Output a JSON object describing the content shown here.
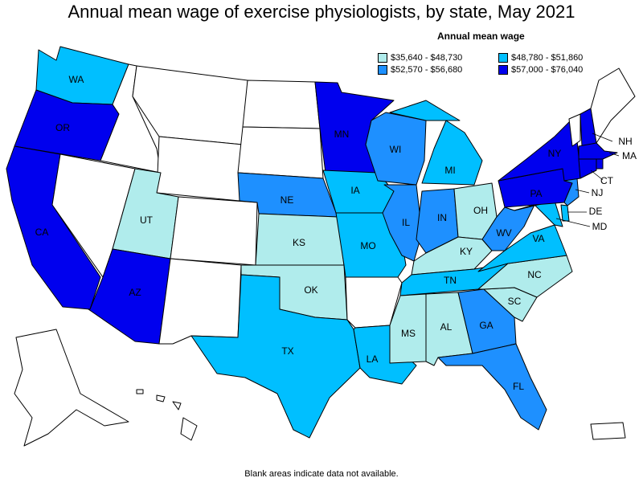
{
  "title": "Annual mean wage of exercise physiologists, by state, May 2021",
  "legend": {
    "title": "Annual mean wage",
    "items": [
      {
        "label": "$35,640 - $48,730",
        "color": "#b0ecec"
      },
      {
        "label": "$48,780 - $51,860",
        "color": "#00bfff"
      },
      {
        "label": "$52,570 - $56,680",
        "color": "#1e90ff"
      },
      {
        "label": "$57,000 - $76,040",
        "color": "#0000ee"
      }
    ]
  },
  "footnote": "Blank areas indicate data not available.",
  "colors": {
    "no_data": "#ffffff",
    "border": "#000000"
  },
  "states": {
    "WA": {
      "label": "WA",
      "bin": 1
    },
    "OR": {
      "label": "OR",
      "bin": 3
    },
    "CA": {
      "label": "CA",
      "bin": 3
    },
    "AZ": {
      "label": "AZ",
      "bin": 3
    },
    "UT": {
      "label": "UT",
      "bin": 0
    },
    "NE": {
      "label": "NE",
      "bin": 2
    },
    "KS": {
      "label": "KS",
      "bin": 0
    },
    "OK": {
      "label": "OK",
      "bin": 0
    },
    "TX": {
      "label": "TX",
      "bin": 1
    },
    "MN": {
      "label": "MN",
      "bin": 3
    },
    "IA": {
      "label": "IA",
      "bin": 1
    },
    "MO": {
      "label": "MO",
      "bin": 1
    },
    "LA": {
      "label": "LA",
      "bin": 1
    },
    "WI": {
      "label": "WI",
      "bin": 2
    },
    "IL": {
      "label": "IL",
      "bin": 2
    },
    "MI": {
      "label": "MI",
      "bin": 1
    },
    "IN": {
      "label": "IN",
      "bin": 2
    },
    "OH": {
      "label": "OH",
      "bin": 0
    },
    "KY": {
      "label": "KY",
      "bin": 0
    },
    "TN": {
      "label": "TN",
      "bin": 1
    },
    "MS": {
      "label": "MS",
      "bin": 0
    },
    "AL": {
      "label": "AL",
      "bin": 0
    },
    "GA": {
      "label": "GA",
      "bin": 2
    },
    "FL": {
      "label": "FL",
      "bin": 2
    },
    "SC": {
      "label": "SC",
      "bin": 0
    },
    "NC": {
      "label": "NC",
      "bin": 0
    },
    "VA": {
      "label": "VA",
      "bin": 1
    },
    "WV": {
      "label": "WV",
      "bin": 2
    },
    "PA": {
      "label": "PA",
      "bin": 3
    },
    "NY": {
      "label": "NY",
      "bin": 3
    },
    "NJ": {
      "label": "NJ",
      "bin": 2
    },
    "DE": {
      "label": "DE",
      "bin": 1
    },
    "MD": {
      "label": "MD",
      "bin": 1
    },
    "CT": {
      "label": "CT",
      "bin": 3
    },
    "MA": {
      "label": "MA",
      "bin": 3
    },
    "NH": {
      "label": "NH",
      "bin": 3
    },
    "VT": {
      "label": "",
      "bin": null
    },
    "ME": {
      "label": "",
      "bin": null
    },
    "RI": {
      "label": "",
      "bin": 3
    },
    "MT": {
      "label": "",
      "bin": null
    },
    "ID": {
      "label": "",
      "bin": null
    },
    "WY": {
      "label": "",
      "bin": null
    },
    "NV": {
      "label": "",
      "bin": null
    },
    "CO": {
      "label": "",
      "bin": null
    },
    "NM": {
      "label": "",
      "bin": null
    },
    "ND": {
      "label": "",
      "bin": null
    },
    "SD": {
      "label": "",
      "bin": null
    },
    "AR": {
      "label": "",
      "bin": null
    },
    "AK": {
      "label": "",
      "bin": null
    },
    "HI": {
      "label": "",
      "bin": null
    },
    "PR": {
      "label": "",
      "bin": null
    }
  }
}
